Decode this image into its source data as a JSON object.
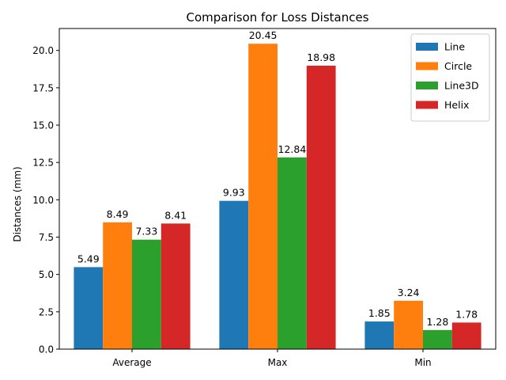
{
  "chart_data": {
    "type": "bar",
    "title": "Comparison for Loss Distances",
    "xlabel": "",
    "ylabel": "Distances (mm)",
    "categories": [
      "Average",
      "Max",
      "Min"
    ],
    "series": [
      {
        "name": "Line",
        "values": [
          5.49,
          9.93,
          1.85
        ],
        "color": "#1f77b4"
      },
      {
        "name": "Circle",
        "values": [
          8.49,
          20.45,
          3.24
        ],
        "color": "#ff7f0e"
      },
      {
        "name": "Line3D",
        "values": [
          7.33,
          12.84,
          1.28
        ],
        "color": "#2ca02c"
      },
      {
        "name": "Helix",
        "values": [
          8.41,
          18.98,
          1.78
        ],
        "color": "#d62728"
      }
    ],
    "value_labels": [
      [
        "5.49",
        "9.93",
        "1.85"
      ],
      [
        "8.49",
        "20.45",
        "3.24"
      ],
      [
        "7.33",
        "12.84",
        "1.28"
      ],
      [
        "8.41",
        "18.98",
        "1.78"
      ]
    ],
    "ylim": [
      0,
      21.47
    ],
    "yticks": [
      0,
      2.5,
      5,
      7.5,
      10,
      12.5,
      15,
      17.5,
      20
    ],
    "ytick_labels": [
      "0.0",
      "2.5",
      "5.0",
      "7.5",
      "10.0",
      "12.5",
      "15.0",
      "17.5",
      "20.0"
    ],
    "grid": false,
    "legend_position": "top-right"
  }
}
